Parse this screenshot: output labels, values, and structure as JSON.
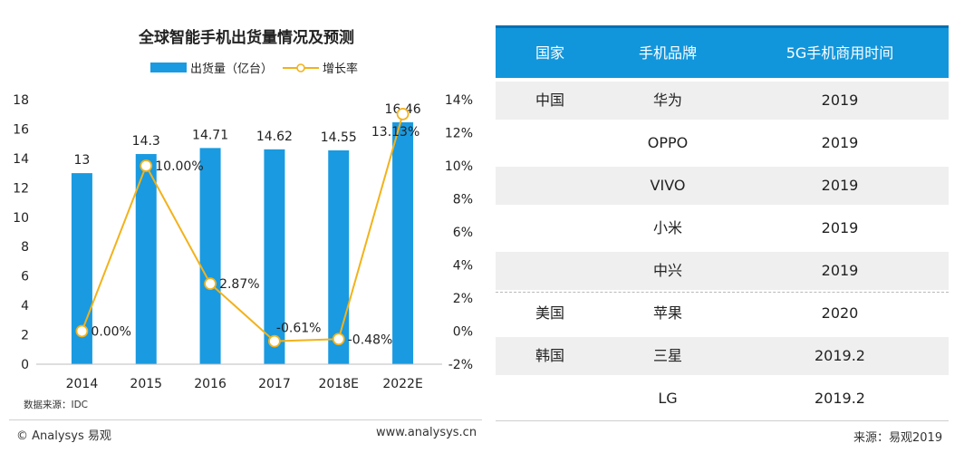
{
  "chart_data": {
    "type": "bar+line",
    "title": "全球智能手机出货量情况及预测",
    "categories": [
      "2014",
      "2015",
      "2016",
      "2017",
      "2018E",
      "2022E"
    ],
    "series": [
      {
        "name": "出货量（亿台）",
        "type": "bar",
        "axis": "left",
        "color": "#1a9ae0",
        "values": [
          13,
          14.3,
          14.71,
          14.62,
          14.55,
          16.46
        ],
        "labels": [
          "13",
          "14.3",
          "14.71",
          "14.62",
          "14.55",
          "16.46"
        ]
      },
      {
        "name": "增长率",
        "type": "line",
        "axis": "right",
        "color": "#f2b21b",
        "values": [
          0.0,
          10.0,
          2.87,
          -0.61,
          -0.48,
          13.13
        ],
        "labels": [
          "0.00%",
          "10.00%",
          "2.87%",
          "-0.61%",
          "-0.48%",
          "13.13%"
        ]
      }
    ],
    "y_left": {
      "min": 0,
      "max": 18,
      "ticks": [
        "0",
        "2",
        "4",
        "6",
        "8",
        "10",
        "12",
        "14",
        "16",
        "18"
      ]
    },
    "y_right": {
      "min": -2,
      "max": 14,
      "ticks": [
        "-2%",
        "0%",
        "2%",
        "4%",
        "6%",
        "8%",
        "10%",
        "12%",
        "14%"
      ]
    },
    "legend_position": "top",
    "grid": false,
    "source_note": "数据来源：IDC"
  },
  "footer": {
    "copyright": "© Analysys 易观",
    "url": "www.analysys.cn"
  },
  "table": {
    "headers": [
      "国家",
      "手机品牌",
      "5G手机商用时间"
    ],
    "rows": [
      {
        "country": "中国",
        "brand": "华为",
        "time": "2019"
      },
      {
        "country": "",
        "brand": "OPPO",
        "time": "2019"
      },
      {
        "country": "",
        "brand": "VIVO",
        "time": "2019"
      },
      {
        "country": "",
        "brand": "小米",
        "time": "2019"
      },
      {
        "country": "",
        "brand": "中兴",
        "time": "2019"
      },
      {
        "country": "美国",
        "brand": "苹果",
        "time": "2020"
      },
      {
        "country": "韩国",
        "brand": "三星",
        "time": "2019.2"
      },
      {
        "country": "",
        "brand": "LG",
        "time": "2019.2"
      }
    ],
    "source": "来源：易观2019"
  }
}
